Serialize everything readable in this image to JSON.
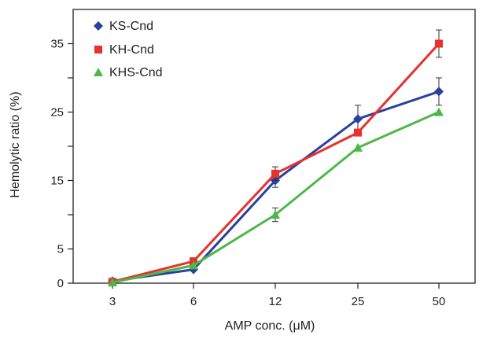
{
  "chart_data": {
    "type": "line",
    "xlabel": "AMP conc. (μM)",
    "ylabel": "Hemolytic ratio (%)",
    "categories": [
      "3",
      "6",
      "12",
      "25",
      "50"
    ],
    "ylim": [
      0,
      40
    ],
    "y_ticks_labeled": [
      0,
      5,
      15,
      25,
      35
    ],
    "y_ticks_minor": [
      10,
      20,
      30
    ],
    "grid": false,
    "legend_position": "top-left",
    "series": [
      {
        "name": "KS-Cnd",
        "color": "#2b3f9e",
        "marker": "diamond",
        "values": [
          0.3,
          2,
          15,
          24,
          28
        ],
        "errors": [
          0,
          0,
          1,
          2,
          2
        ]
      },
      {
        "name": "KH-Cnd",
        "color": "#e8302d",
        "marker": "square",
        "values": [
          0.2,
          3.2,
          16,
          22,
          35
        ],
        "errors": [
          0,
          0,
          1,
          0,
          2
        ]
      },
      {
        "name": "KHS-Cnd",
        "color": "#4cb848",
        "marker": "triangle",
        "values": [
          0.1,
          2.6,
          10,
          19.8,
          25
        ],
        "errors": [
          0,
          0,
          1,
          0,
          0
        ]
      }
    ]
  }
}
